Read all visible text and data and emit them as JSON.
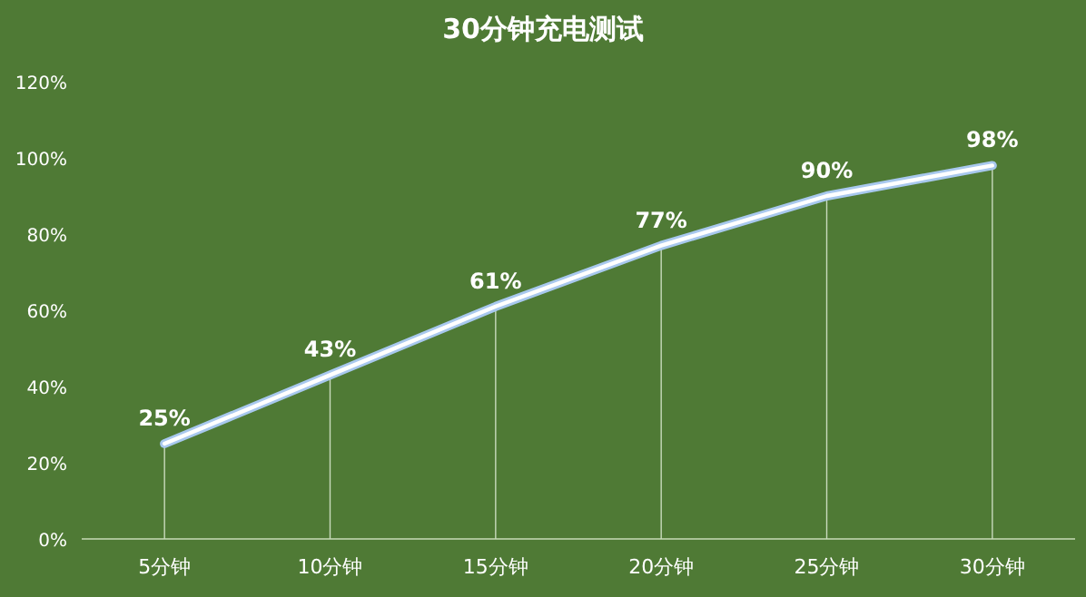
{
  "chart_data": {
    "type": "line",
    "title": "30分钟充电测试",
    "categories": [
      "5分钟",
      "10分钟",
      "15分钟",
      "20分钟",
      "25分钟",
      "30分钟"
    ],
    "values": [
      25,
      43,
      61,
      77,
      90,
      98
    ],
    "value_labels": [
      "25%",
      "43%",
      "61%",
      "77%",
      "90%",
      "98%"
    ],
    "color": "#ffffff",
    "marker": "none",
    "line_style": "solid",
    "grid": "x",
    "ylim": [
      0,
      120
    ],
    "yticks": [
      {
        "value": 0,
        "label": "0%"
      },
      {
        "value": 20,
        "label": "20%"
      },
      {
        "value": 40,
        "label": "40%"
      },
      {
        "value": 60,
        "label": "60%"
      },
      {
        "value": 80,
        "label": "80%"
      },
      {
        "value": 100,
        "label": "100%"
      },
      {
        "value": 120,
        "label": "120%"
      }
    ]
  }
}
